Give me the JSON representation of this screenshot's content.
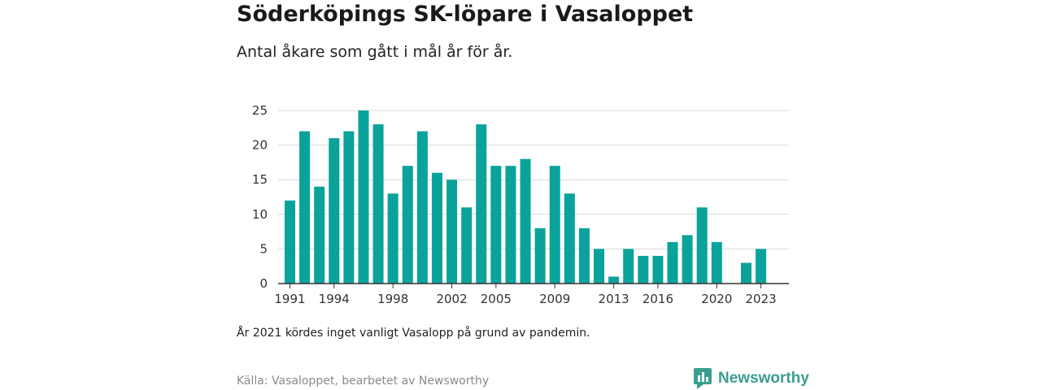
{
  "header": {
    "title": "Söderköpings SK-löpare i Vasaloppet",
    "subtitle": "Antal åkare som gått i mål år för år."
  },
  "footer": {
    "note": "År 2021 kördes inget vanligt Vasalopp på grund av pandemin.",
    "source": "Källa: Vasaloppet, bearbetet av Newsworthy",
    "brand": "Newsworthy",
    "brand_icon": "newsworthy-logo-icon"
  },
  "colors": {
    "bar": "#0aa39b",
    "grid": "#d9d9d9",
    "axis": "#333333",
    "brand": "#3a9e8f"
  },
  "chart_data": {
    "type": "bar",
    "title": "Söderköpings SK-löpare i Vasaloppet",
    "subtitle": "Antal åkare som gått i mål år för år.",
    "xlabel": "",
    "ylabel": "",
    "ylim": [
      0,
      25
    ],
    "yticks": [
      0,
      5,
      10,
      15,
      20,
      25
    ],
    "xticks": [
      "1991",
      "1994",
      "1998",
      "2002",
      "2005",
      "2009",
      "2013",
      "2016",
      "2020",
      "2023"
    ],
    "grid": true,
    "legend": "none",
    "categories": [
      1991,
      1992,
      1993,
      1994,
      1995,
      1996,
      1997,
      1998,
      1999,
      2000,
      2001,
      2002,
      2003,
      2004,
      2005,
      2006,
      2007,
      2008,
      2009,
      2010,
      2011,
      2012,
      2013,
      2014,
      2015,
      2016,
      2017,
      2018,
      2019,
      2020,
      2021,
      2022,
      2023
    ],
    "values": [
      12,
      22,
      14,
      21,
      22,
      25,
      23,
      13,
      17,
      22,
      16,
      15,
      11,
      23,
      17,
      17,
      18,
      8,
      17,
      13,
      8,
      5,
      1,
      5,
      4,
      4,
      6,
      7,
      11,
      6,
      null,
      3,
      5
    ]
  }
}
